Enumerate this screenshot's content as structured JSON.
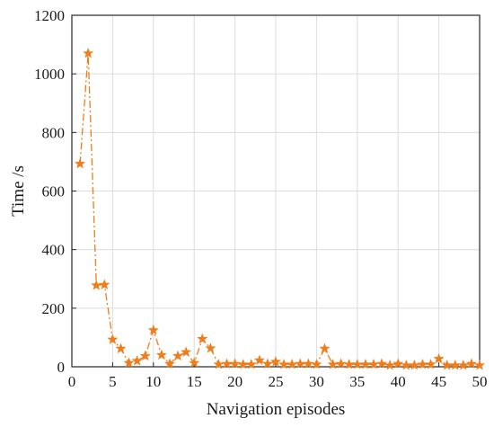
{
  "chart_data": {
    "type": "line",
    "title": "",
    "xlabel": "Navigation episodes",
    "ylabel": "Time /s",
    "xlim": [
      0,
      50
    ],
    "ylim": [
      0,
      1200
    ],
    "xticks": [
      0,
      5,
      10,
      15,
      20,
      25,
      30,
      35,
      40,
      45,
      50
    ],
    "yticks": [
      0,
      200,
      400,
      600,
      800,
      1000,
      1200
    ],
    "grid": true,
    "series": [
      {
        "marker": "star",
        "line_style": "dash-dot",
        "color": "#f07d1a",
        "x": [
          1,
          2,
          3,
          4,
          5,
          6,
          7,
          8,
          9,
          10,
          11,
          12,
          13,
          14,
          15,
          16,
          17,
          18,
          19,
          20,
          21,
          22,
          23,
          24,
          25,
          26,
          27,
          28,
          29,
          30,
          31,
          32,
          33,
          34,
          35,
          36,
          37,
          38,
          39,
          40,
          41,
          42,
          43,
          44,
          45,
          46,
          47,
          48,
          49,
          50
        ],
        "y": [
          693,
          1070,
          278,
          280,
          93,
          62,
          13,
          20,
          37,
          125,
          40,
          10,
          37,
          50,
          13,
          95,
          63,
          8,
          10,
          10,
          8,
          8,
          22,
          10,
          17,
          8,
          8,
          10,
          10,
          8,
          62,
          8,
          10,
          8,
          8,
          8,
          8,
          10,
          5,
          10,
          5,
          5,
          8,
          8,
          27,
          5,
          5,
          5,
          10,
          5
        ]
      }
    ]
  }
}
